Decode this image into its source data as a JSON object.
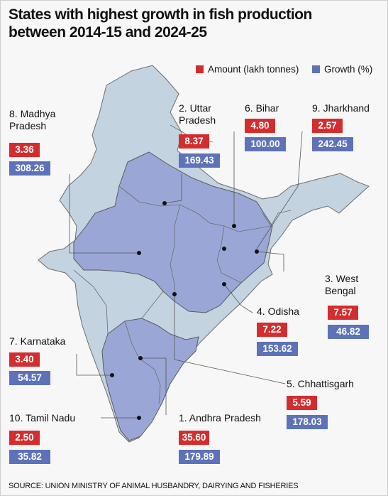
{
  "title_line1": "States with highest growth in fish production",
  "title_line2": "between 2014-15 and 2024-25",
  "legend": {
    "amount": {
      "label": "Amount (lakh tonnes)",
      "color": "#d42d2d"
    },
    "growth": {
      "label": "Growth (%)",
      "color": "#5d72b8"
    }
  },
  "map_colors": {
    "highlighted": "#9aa7d6",
    "other": "#c4d3e0",
    "border": "#6c6c6c"
  },
  "states": [
    {
      "key": "mp",
      "name_line1": "8. Madhya",
      "name_line2": "Pradesh",
      "amount": "3.36",
      "growth": "308.26"
    },
    {
      "key": "up",
      "name_line1": "2. Uttar",
      "name_line2": "Pradesh",
      "amount": "8.37",
      "growth": "169.43"
    },
    {
      "key": "bihar",
      "name_line1": "6. Bihar",
      "name_line2": "",
      "amount": "4.80",
      "growth": "100.00"
    },
    {
      "key": "jh",
      "name_line1": "9. Jharkhand",
      "name_line2": "",
      "amount": "2.57",
      "growth": "242.45"
    },
    {
      "key": "wb",
      "name_line1": "3. West",
      "name_line2": "Bengal",
      "amount": "7.57",
      "growth": "46.82"
    },
    {
      "key": "odisha",
      "name_line1": "4. Odisha",
      "name_line2": "",
      "amount": "7.22",
      "growth": "153.62"
    },
    {
      "key": "ka",
      "name_line1": "7. Karnataka",
      "name_line2": "",
      "amount": "3.40",
      "growth": "54.57"
    },
    {
      "key": "cg",
      "name_line1": "5. Chhattisgarh",
      "name_line2": "",
      "amount": "5.59",
      "growth": "178.03"
    },
    {
      "key": "tn",
      "name_line1": "10. Tamil Nadu",
      "name_line2": "",
      "amount": "2.50",
      "growth": "35.82"
    },
    {
      "key": "ap",
      "name_line1": "1. Andhra Pradesh",
      "name_line2": "",
      "amount": "35.60",
      "growth": "179.89"
    }
  ],
  "source": "SOURCE: UNION MINISTRY OF ANIMAL HUSBANDRY, DAIRYING AND FISHERIES"
}
